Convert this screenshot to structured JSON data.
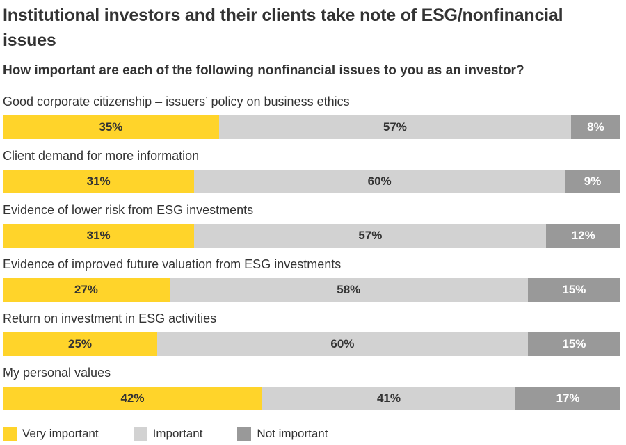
{
  "title": "Institutional investors and their clients take note of ESG/nonfinancial issues",
  "subtitle": "How important are each of the following nonfinancial issues to you as an investor?",
  "chart_data": {
    "type": "bar",
    "orientation": "horizontal",
    "stacked": true,
    "title": "How important are each of the following nonfinancial issues to you as an investor?",
    "unit": "%",
    "categories": [
      "Good corporate citizenship – issuers’ policy on business ethics",
      "Client demand for more information",
      "Evidence of lower risk from ESG investments",
      "Evidence of improved future valuation from ESG investments",
      "Return on investment in ESG activities",
      "My personal values"
    ],
    "series": [
      {
        "name": "Very important",
        "color": "#ffd42a",
        "values": [
          35,
          31,
          31,
          27,
          25,
          42
        ]
      },
      {
        "name": "Important",
        "color": "#d2d2d2",
        "values": [
          57,
          60,
          57,
          58,
          60,
          41
        ]
      },
      {
        "name": "Not important",
        "color": "#999999",
        "values": [
          8,
          9,
          12,
          15,
          15,
          17
        ]
      }
    ],
    "legend": "bottom-left",
    "grid": false
  }
}
